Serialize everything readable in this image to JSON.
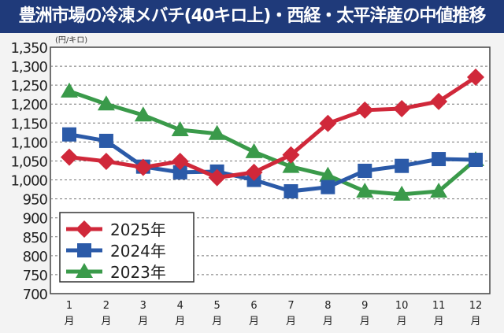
{
  "chart_data": {
    "type": "line",
    "title": "豊洲市場の冷凍メバチ(40キロ上)・西経・太平洋産の中値推移",
    "ylabel": "(円/キロ)",
    "xlabel": "",
    "ylim": [
      700,
      1350
    ],
    "yticks": [
      700,
      750,
      800,
      850,
      900,
      950,
      1000,
      1050,
      1100,
      1150,
      1200,
      1250,
      1300,
      1350
    ],
    "ytick_labels": [
      "700",
      "750",
      "800",
      "850",
      "900",
      "950",
      "1,000",
      "1,050",
      "1,100",
      "1,150",
      "1,200",
      "1,250",
      "1,300",
      "1,350"
    ],
    "categories": [
      "1",
      "2",
      "3",
      "4",
      "5",
      "6",
      "7",
      "8",
      "9",
      "10",
      "11",
      "12"
    ],
    "month_suffix": "月",
    "grid": true,
    "legend_position": "bottom-left",
    "series": [
      {
        "name": "2025年",
        "color": "#d0283a",
        "marker": "diamond",
        "values": [
          1060,
          1049,
          1033,
          1049,
          1006,
          1020,
          1066,
          1149,
          1184,
          1188,
          1207,
          1271
        ]
      },
      {
        "name": "2024年",
        "color": "#2b5aa8",
        "marker": "square",
        "values": [
          1120,
          1103,
          1035,
          1020,
          1022,
          1000,
          970,
          981,
          1024,
          1037,
          1055,
          1053
        ]
      },
      {
        "name": "2023年",
        "color": "#3a9a4a",
        "marker": "triangle",
        "values": [
          1234,
          1200,
          1171,
          1132,
          1122,
          1074,
          1035,
          1012,
          970,
          962,
          970,
          1053
        ]
      }
    ]
  }
}
